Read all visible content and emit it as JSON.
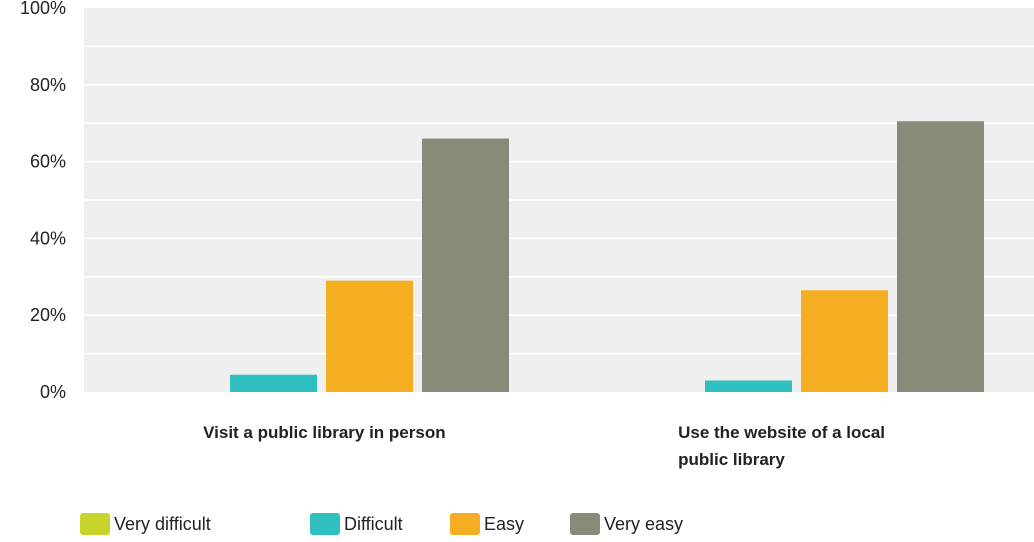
{
  "chart_data": {
    "type": "bar",
    "categories": [
      [
        "Visit a public library in person"
      ],
      [
        "Use the website of a local",
        "public library"
      ]
    ],
    "series": [
      {
        "name": "Very difficult",
        "color": "#c8d42c",
        "values": [
          0,
          0
        ]
      },
      {
        "name": "Difficult",
        "color": "#2fbfbf",
        "values": [
          4.5,
          3
        ]
      },
      {
        "name": "Easy",
        "color": "#f5ae22",
        "values": [
          29,
          26.5
        ]
      },
      {
        "name": "Very easy",
        "color": "#888a78",
        "values": [
          66,
          70.5
        ]
      }
    ],
    "ylim": [
      0,
      100
    ],
    "yticks": [
      "0%",
      "20%",
      "40%",
      "60%",
      "80%",
      "100%"
    ],
    "ytick_values": [
      0,
      20,
      40,
      60,
      80,
      100
    ],
    "grid": true,
    "legend_position": "bottom-left",
    "colors": {
      "plot_background": "#efefef",
      "gridline": "#ffffff"
    }
  }
}
